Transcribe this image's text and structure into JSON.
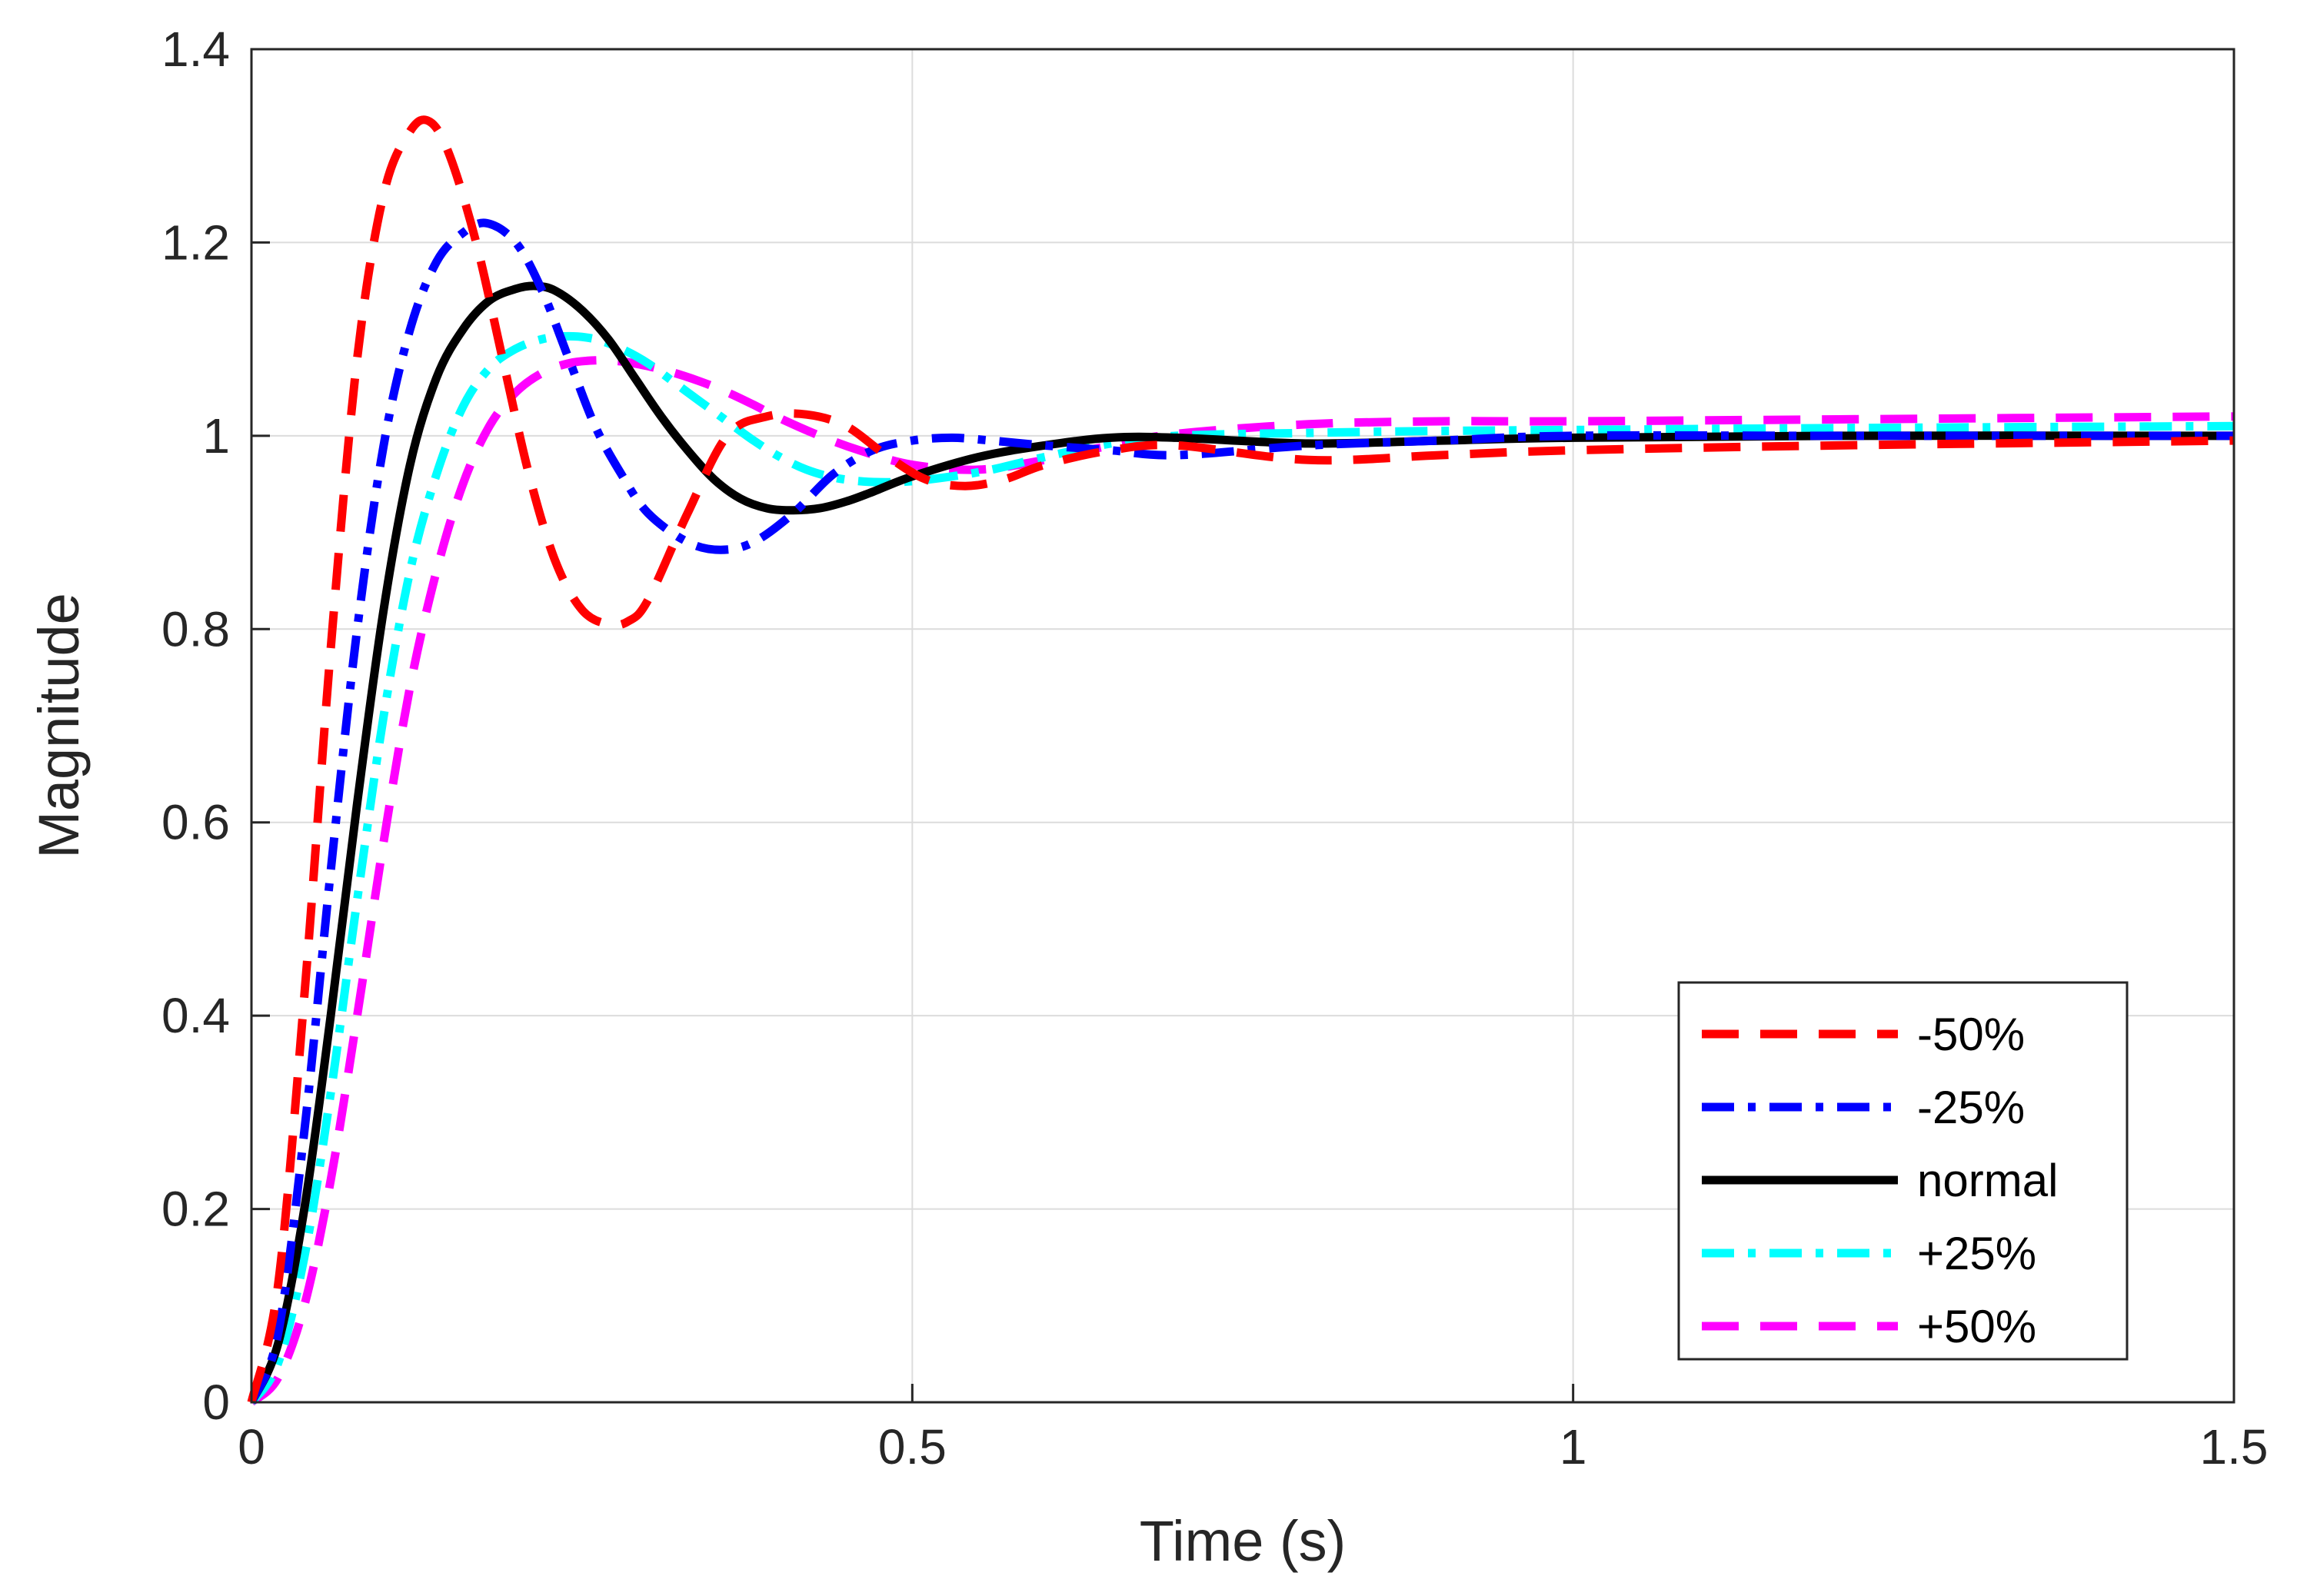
{
  "chart_data": {
    "type": "line",
    "title": "",
    "xlabel": "Time (s)",
    "ylabel": "Magnitude",
    "xlim": [
      0,
      1.5
    ],
    "ylim": [
      0,
      1.4
    ],
    "grid": true,
    "legend_position": "bottom-right",
    "x_ticks": [
      {
        "value": 0,
        "label": "0"
      },
      {
        "value": 0.5,
        "label": "0.5"
      },
      {
        "value": 1,
        "label": "1"
      },
      {
        "value": 1.5,
        "label": "1.5"
      }
    ],
    "y_ticks": [
      {
        "value": 0,
        "label": "0"
      },
      {
        "value": 0.2,
        "label": "0.2"
      },
      {
        "value": 0.4,
        "label": "0.4"
      },
      {
        "value": 0.6,
        "label": "0.6"
      },
      {
        "value": 0.8,
        "label": "0.8"
      },
      {
        "value": 1,
        "label": "1"
      },
      {
        "value": 1.2,
        "label": "1.2"
      },
      {
        "value": 1.4,
        "label": "1.4"
      }
    ],
    "series": [
      {
        "name": "-50%",
        "color": "#ff0000",
        "style": "dashed",
        "x": [
          0,
          0.02,
          0.04,
          0.06,
          0.08,
          0.1,
          0.12,
          0.135,
          0.15,
          0.17,
          0.19,
          0.21,
          0.23,
          0.25,
          0.27,
          0.285,
          0.3,
          0.33,
          0.36,
          0.39,
          0.42,
          0.45,
          0.48,
          0.51,
          0.54,
          0.57,
          0.6,
          0.65,
          0.7,
          0.8,
          0.9,
          1.0,
          1.2,
          1.5
        ],
        "values": [
          0,
          0.12,
          0.42,
          0.78,
          1.08,
          1.25,
          1.315,
          1.325,
          1.29,
          1.2,
          1.08,
          0.96,
          0.87,
          0.82,
          0.805,
          0.808,
          0.83,
          0.92,
          1.0,
          1.02,
          1.022,
          1.01,
          0.98,
          0.955,
          0.948,
          0.955,
          0.97,
          0.985,
          0.99,
          0.975,
          0.98,
          0.985,
          0.99,
          0.995
        ]
      },
      {
        "name": "-25%",
        "color": "#0000ff",
        "style": "dashdot",
        "x": [
          0,
          0.02,
          0.04,
          0.06,
          0.08,
          0.1,
          0.12,
          0.14,
          0.16,
          0.178,
          0.2,
          0.22,
          0.24,
          0.26,
          0.28,
          0.3,
          0.33,
          0.355,
          0.38,
          0.41,
          0.44,
          0.47,
          0.5,
          0.53,
          0.56,
          0.6,
          0.65,
          0.7,
          0.8,
          0.9,
          1.0,
          1.2,
          1.5
        ],
        "values": [
          0,
          0.07,
          0.28,
          0.55,
          0.8,
          0.99,
          1.11,
          1.18,
          1.21,
          1.22,
          1.2,
          1.15,
          1.08,
          1.01,
          0.96,
          0.92,
          0.89,
          0.882,
          0.89,
          0.92,
          0.96,
          0.985,
          0.995,
          0.998,
          0.995,
          0.99,
          0.985,
          0.98,
          0.99,
          0.995,
          1.0,
          1.0,
          1.0
        ]
      },
      {
        "name": "normal",
        "color": "#000000",
        "style": "solid",
        "x": [
          0,
          0.02,
          0.04,
          0.06,
          0.08,
          0.1,
          0.12,
          0.14,
          0.16,
          0.18,
          0.2,
          0.215,
          0.23,
          0.25,
          0.27,
          0.29,
          0.31,
          0.33,
          0.35,
          0.37,
          0.39,
          0.41,
          0.43,
          0.45,
          0.47,
          0.5,
          0.55,
          0.6,
          0.65,
          0.7,
          0.8,
          0.9,
          1.0,
          1.2,
          1.5
        ],
        "values": [
          0,
          0.06,
          0.2,
          0.4,
          0.62,
          0.82,
          0.97,
          1.06,
          1.11,
          1.14,
          1.152,
          1.155,
          1.15,
          1.13,
          1.1,
          1.06,
          1.02,
          0.985,
          0.955,
          0.935,
          0.925,
          0.923,
          0.925,
          0.932,
          0.942,
          0.958,
          0.978,
          0.99,
          0.998,
          0.998,
          0.992,
          0.995,
          0.998,
          1.0,
          1.0
        ]
      },
      {
        "name": "+25%",
        "color": "#00ffff",
        "style": "dashdot",
        "x": [
          0,
          0.02,
          0.04,
          0.06,
          0.08,
          0.1,
          0.12,
          0.14,
          0.16,
          0.18,
          0.2,
          0.22,
          0.24,
          0.26,
          0.28,
          0.3,
          0.32,
          0.34,
          0.36,
          0.38,
          0.4,
          0.42,
          0.44,
          0.46,
          0.48,
          0.5,
          0.53,
          0.56,
          0.6,
          0.65,
          0.7,
          0.8,
          0.9,
          1.0,
          1.2,
          1.5
        ],
        "values": [
          0,
          0.04,
          0.15,
          0.32,
          0.52,
          0.71,
          0.86,
          0.96,
          1.03,
          1.07,
          1.09,
          1.1,
          1.103,
          1.1,
          1.09,
          1.075,
          1.055,
          1.035,
          1.015,
          0.995,
          0.978,
          0.965,
          0.957,
          0.953,
          0.952,
          0.953,
          0.958,
          0.965,
          0.978,
          0.992,
          1.0,
          1.003,
          1.005,
          1.006,
          1.008,
          1.01
        ]
      },
      {
        "name": "+50%",
        "color": "#ff00ff",
        "style": "dashed",
        "x": [
          0,
          0.02,
          0.04,
          0.06,
          0.08,
          0.1,
          0.12,
          0.14,
          0.16,
          0.18,
          0.2,
          0.22,
          0.24,
          0.26,
          0.28,
          0.3,
          0.32,
          0.34,
          0.36,
          0.38,
          0.4,
          0.43,
          0.46,
          0.5,
          0.55,
          0.6,
          0.65,
          0.7,
          0.8,
          0.9,
          1.0,
          1.2,
          1.5
        ],
        "values": [
          0,
          0.025,
          0.1,
          0.23,
          0.4,
          0.58,
          0.74,
          0.86,
          0.95,
          1.01,
          1.045,
          1.065,
          1.075,
          1.078,
          1.077,
          1.072,
          1.065,
          1.056,
          1.045,
          1.032,
          1.018,
          1.0,
          0.985,
          0.97,
          0.965,
          0.975,
          0.99,
          1.002,
          1.012,
          1.015,
          1.015,
          1.017,
          1.02
        ]
      }
    ]
  }
}
